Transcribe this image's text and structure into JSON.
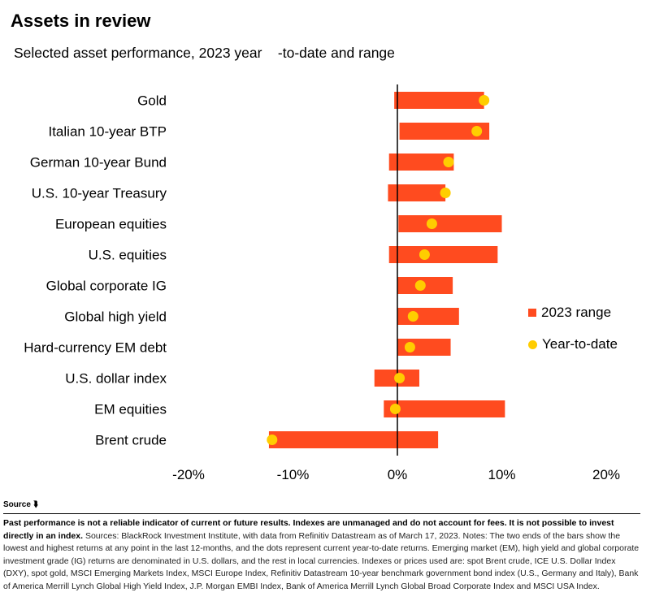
{
  "title": "Assets in review",
  "subtitle": "Selected asset performance, 2023 year    -to-date and range",
  "chart_data": {
    "type": "range-dot",
    "orientation": "horizontal",
    "categories": [
      "Gold",
      "Italian 10-year BTP",
      "German 10-year Bund",
      "U.S. 10-year Treasury",
      "European equities",
      "U.S. equities",
      "Global corporate IG",
      "Global high yield",
      "Hard-currency EM debt",
      "U.S. dollar index",
      "EM equities",
      "Brent crude"
    ],
    "series": [
      {
        "name": "2023 range",
        "type": "range-bar",
        "low": [
          -0.3,
          0.2,
          -0.8,
          -0.9,
          0.1,
          -0.8,
          0.0,
          0.0,
          0.0,
          -2.2,
          -1.3,
          -12.3
        ],
        "high": [
          8.3,
          8.8,
          5.4,
          4.6,
          10.0,
          9.6,
          5.3,
          5.9,
          5.1,
          2.1,
          10.3,
          3.9
        ]
      },
      {
        "name": "Year-to-date",
        "type": "dot",
        "values": [
          8.3,
          7.6,
          4.9,
          4.6,
          3.3,
          2.6,
          2.2,
          1.5,
          1.2,
          0.2,
          -0.2,
          -12.0
        ]
      }
    ],
    "xlim": [
      -20,
      20
    ],
    "x_ticks": [
      -20,
      -10,
      0,
      10,
      20
    ],
    "x_tick_labels": [
      "-20%",
      "-10%",
      "0%",
      "10%",
      "20%"
    ],
    "zero_line": true,
    "grid": false,
    "legend_position": "right",
    "colors": {
      "range": "#ff4b1f",
      "ytd": "#ffcd00",
      "zero_line": "#000000"
    }
  },
  "source": {
    "label": "Source"
  },
  "notes": {
    "bold": "Past performance is not a reliable indicator of current or future results. Indexes are unmanaged and do not account for fees. It is not possible to invest directly in an index.",
    "text": " Sources: BlackRock Investment Institute, with data from Refinitiv Datastream as of March 17, 2023. Notes: The two ends of the bars show the lowest and highest returns at any point in the last 12-months, and the dots represent current year-to-date returns. Emerging market (EM), high yield and global corporate investment grade (IG) returns are denominated in U.S. dollars, and the rest in local currencies. Indexes or prices used are: spot Brent crude, ICE U.S. Dollar Index (DXY), spot gold, MSCI Emerging Markets Index, MSCI Europe Index, Refinitiv Datastream 10-year benchmark government bond index (U.S., Germany and Italy), Bank of America Merrill Lynch Global High Yield Index, J.P. Morgan EMBI Index, Bank of America Merrill Lynch Global Broad Corporate Index and MSCI USA Index."
  }
}
